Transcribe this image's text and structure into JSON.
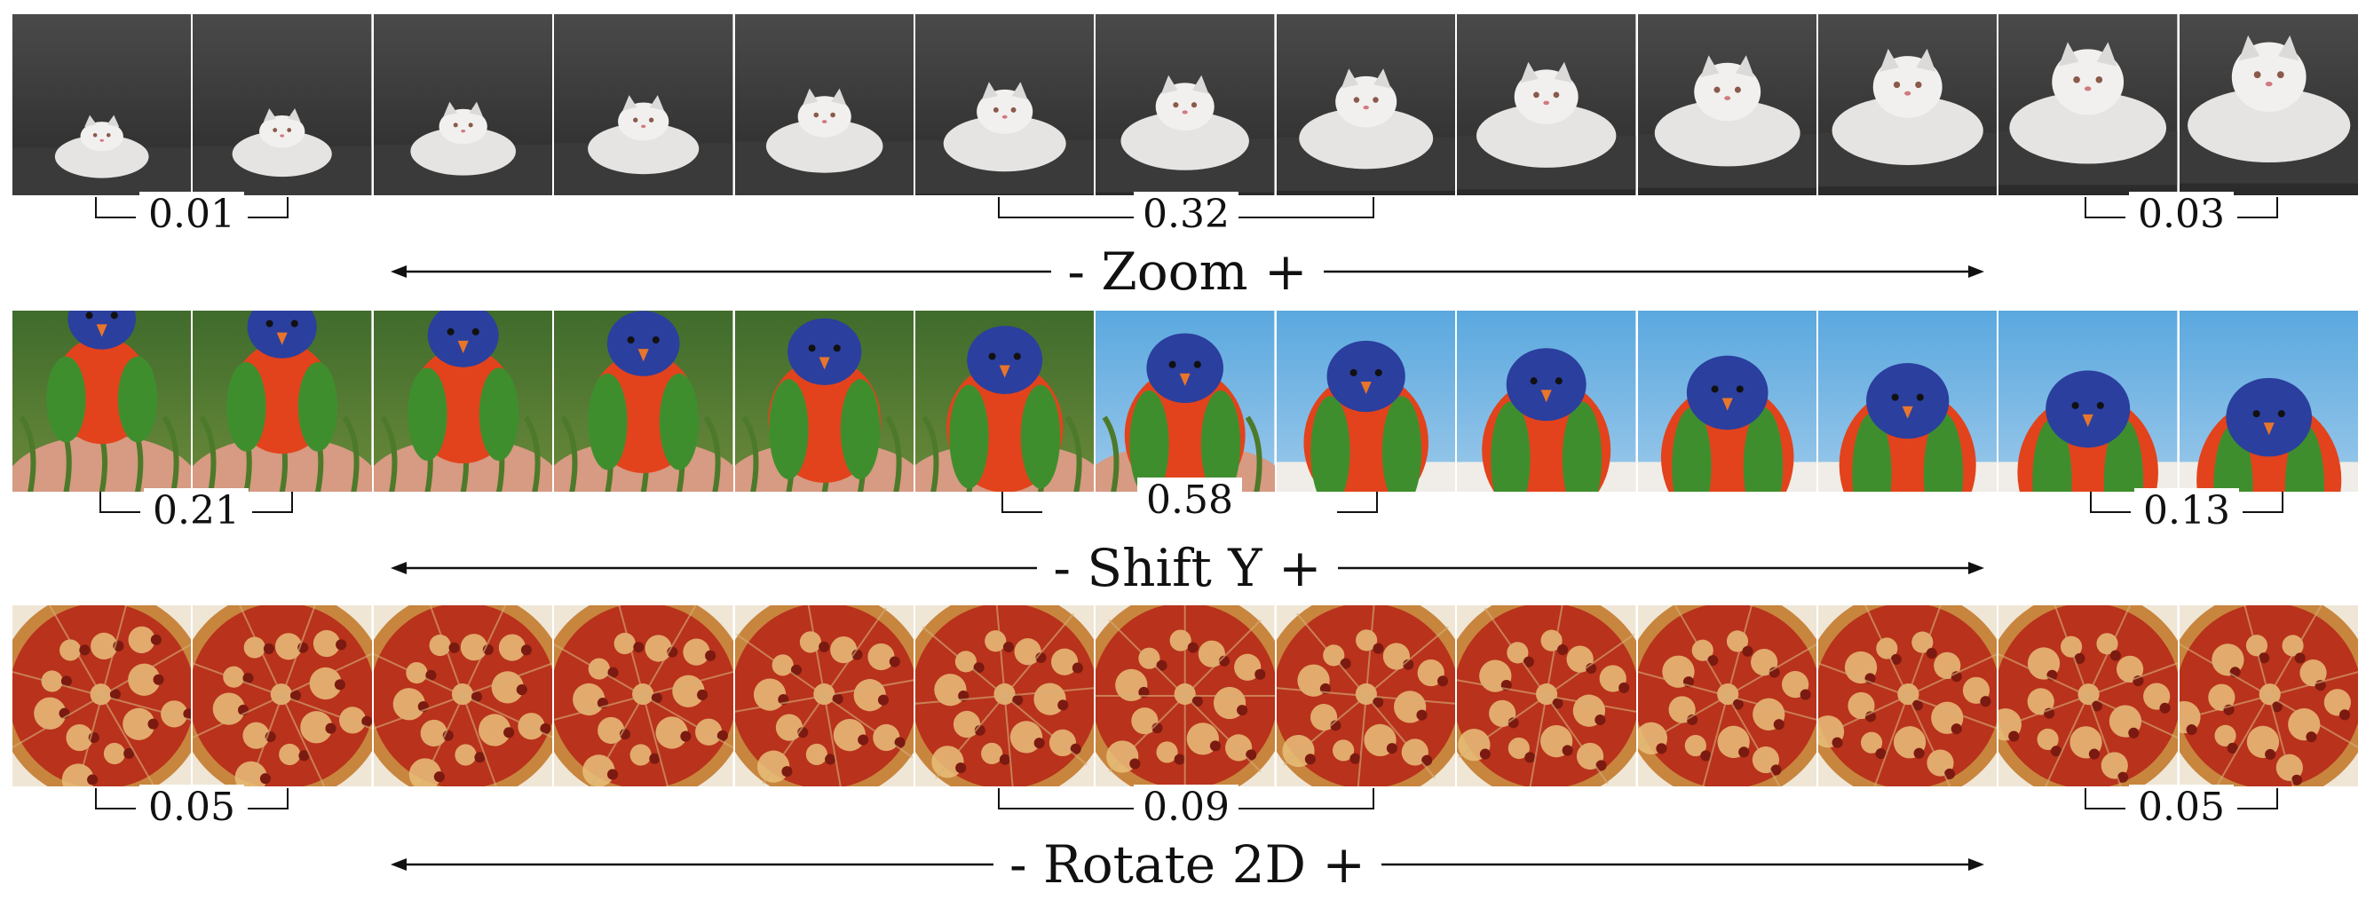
{
  "rows": [
    {
      "subject": "cat",
      "frame_count": 13,
      "axis_label": "- Zoom +",
      "scores": {
        "left": "0.01",
        "center": "0.32",
        "right": "0.03"
      },
      "colors": {
        "bg_top": "#4a4a4a",
        "bg_bottom": "#2a2a2a",
        "fur": "#e6e4e2",
        "floor": "#3a3a3a"
      }
    },
    {
      "subject": "parrot",
      "frame_count": 13,
      "axis_label": "- Shift Y +",
      "scores": {
        "left": "0.21",
        "center": "0.58",
        "right": "0.13"
      },
      "colors": {
        "head": "#2b3f9e",
        "chest": "#e2431c",
        "wing": "#3f8e2e",
        "sky": "#5aa8df"
      }
    },
    {
      "subject": "pizza",
      "frame_count": 13,
      "axis_label": "- Rotate 2D +",
      "scores": {
        "left": "0.05",
        "center": "0.09",
        "right": "0.05"
      },
      "colors": {
        "crust": "#c8853e",
        "sauce": "#b8321c",
        "cheese": "#e9c07a",
        "plate": "#efe6d6"
      }
    }
  ]
}
